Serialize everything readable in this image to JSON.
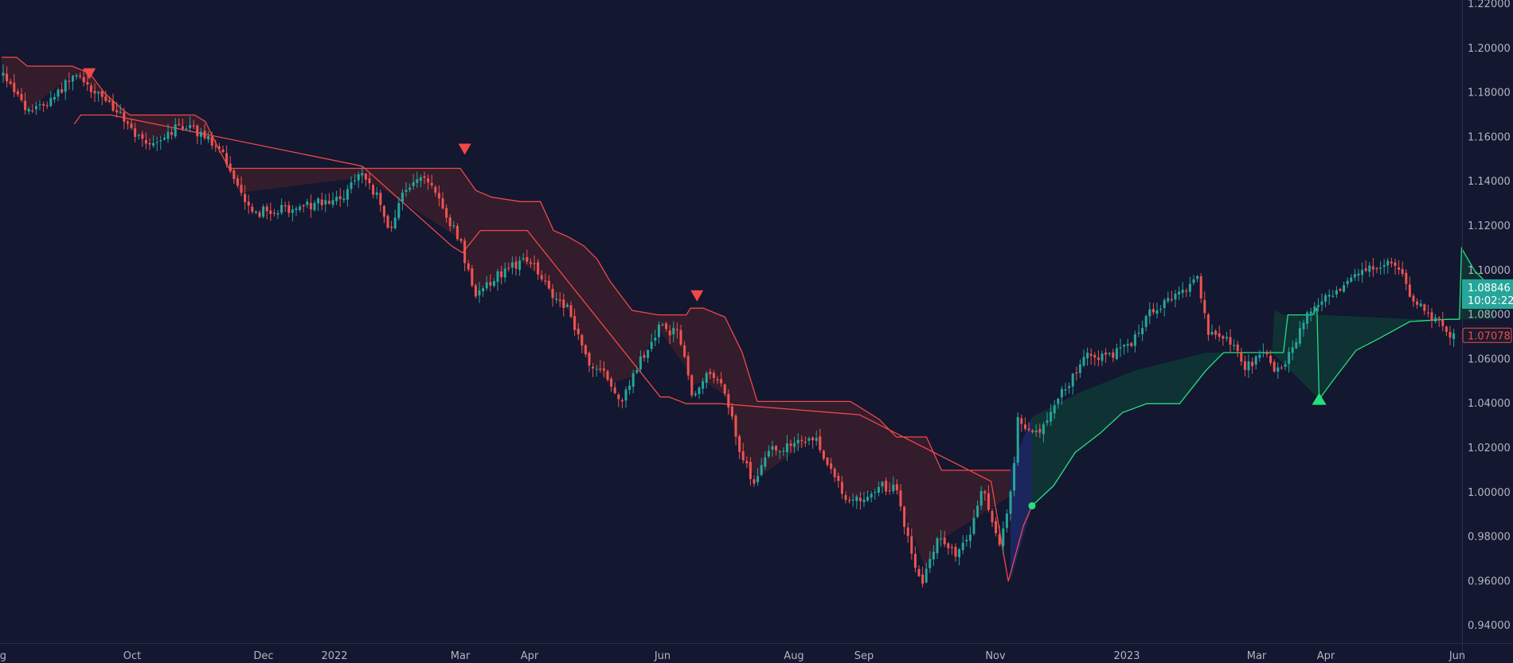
{
  "chart_data": {
    "type": "candlestick",
    "yaxis": {
      "range": [
        0.935,
        1.22
      ],
      "ticks": [
        "1.22000",
        "1.20000",
        "1.18000",
        "1.16000",
        "1.14000",
        "1.12000",
        "1.10000",
        "1.08000",
        "1.06000",
        "1.04000",
        "1.02000",
        "1.00000",
        "0.98000",
        "0.96000",
        "0.94000"
      ],
      "tick_values": [
        1.22,
        1.2,
        1.18,
        1.16,
        1.14,
        1.12,
        1.1,
        1.08,
        1.06,
        1.04,
        1.02,
        1.0,
        0.98,
        0.96,
        0.94
      ]
    },
    "xaxis": {
      "ticks": [
        {
          "label": "ug",
          "date": "2021-08-01"
        },
        {
          "label": "Oct",
          "date": "2021-10-01"
        },
        {
          "label": "Dec",
          "date": "2021-12-01"
        },
        {
          "label": "2022",
          "date": "2022-01-01"
        },
        {
          "label": "Mar",
          "date": "2022-03-01"
        },
        {
          "label": "Apr",
          "date": "2022-04-01"
        },
        {
          "label": "Jun",
          "date": "2022-06-01"
        },
        {
          "label": "Aug",
          "date": "2022-08-01"
        },
        {
          "label": "Sep",
          "date": "2022-09-01"
        },
        {
          "label": "Nov",
          "date": "2022-11-01"
        },
        {
          "label": "2023",
          "date": "2023-01-01"
        },
        {
          "label": "Mar",
          "date": "2023-03-01"
        },
        {
          "label": "Apr",
          "date": "2023-04-01"
        },
        {
          "label": "Jun",
          "date": "2023-06-01"
        }
      ]
    },
    "price_path": [
      [
        "2021-08-01",
        1.188
      ],
      [
        "2021-08-13",
        1.172
      ],
      [
        "2021-08-24",
        1.176
      ],
      [
        "2021-09-03",
        1.188
      ],
      [
        "2021-09-10",
        1.184
      ],
      [
        "2021-09-17",
        1.178
      ],
      [
        "2021-09-24",
        1.172
      ],
      [
        "2021-10-01",
        1.162
      ],
      [
        "2021-10-08",
        1.157
      ],
      [
        "2021-10-17",
        1.162
      ],
      [
        "2021-10-26",
        1.166
      ],
      [
        "2021-11-03",
        1.16
      ],
      [
        "2021-11-10",
        1.157
      ],
      [
        "2021-11-15",
        1.145
      ],
      [
        "2021-11-20",
        1.135
      ],
      [
        "2021-11-26",
        1.124
      ],
      [
        "2021-12-01",
        1.127
      ],
      [
        "2021-12-09",
        1.128
      ],
      [
        "2021-12-17",
        1.128
      ],
      [
        "2021-12-27",
        1.131
      ],
      [
        "2022-01-06",
        1.133
      ],
      [
        "2022-01-13",
        1.145
      ],
      [
        "2022-01-21",
        1.133
      ],
      [
        "2022-01-27",
        1.117
      ],
      [
        "2022-02-02",
        1.134
      ],
      [
        "2022-02-10",
        1.143
      ],
      [
        "2022-02-17",
        1.136
      ],
      [
        "2022-02-24",
        1.122
      ],
      [
        "2022-03-01",
        1.113
      ],
      [
        "2022-03-07",
        1.089
      ],
      [
        "2022-03-14",
        1.095
      ],
      [
        "2022-03-21",
        1.1
      ],
      [
        "2022-03-28",
        1.104
      ],
      [
        "2022-04-04",
        1.101
      ],
      [
        "2022-04-11",
        1.088
      ],
      [
        "2022-04-19",
        1.082
      ],
      [
        "2022-04-28",
        1.057
      ],
      [
        "2022-05-06",
        1.054
      ],
      [
        "2022-05-12",
        1.04
      ],
      [
        "2022-05-20",
        1.056
      ],
      [
        "2022-05-30",
        1.074
      ],
      [
        "2022-06-08",
        1.072
      ],
      [
        "2022-06-15",
        1.044
      ],
      [
        "2022-06-24",
        1.055
      ],
      [
        "2022-07-01",
        1.042
      ],
      [
        "2022-07-07",
        1.017
      ],
      [
        "2022-07-14",
        1.004
      ],
      [
        "2022-07-21",
        1.02
      ],
      [
        "2022-07-30",
        1.021
      ],
      [
        "2022-08-10",
        1.025
      ],
      [
        "2022-08-18",
        1.01
      ],
      [
        "2022-08-24",
        0.996
      ],
      [
        "2022-09-01",
        0.997
      ],
      [
        "2022-09-09",
        1.003
      ],
      [
        "2022-09-16",
        1.001
      ],
      [
        "2022-09-23",
        0.972
      ],
      [
        "2022-09-28",
        0.959
      ],
      [
        "2022-10-06",
        0.98
      ],
      [
        "2022-10-13",
        0.972
      ],
      [
        "2022-10-20",
        0.98
      ],
      [
        "2022-10-26",
        1.004
      ],
      [
        "2022-11-03",
        0.976
      ],
      [
        "2022-11-09",
        1.003
      ],
      [
        "2022-11-11",
        1.034
      ],
      [
        "2022-11-21",
        1.025
      ],
      [
        "2022-11-28",
        1.04
      ],
      [
        "2022-12-06",
        1.05
      ],
      [
        "2022-12-14",
        1.063
      ],
      [
        "2022-12-22",
        1.061
      ],
      [
        "2023-01-02",
        1.066
      ],
      [
        "2023-01-13",
        1.083
      ],
      [
        "2023-01-26",
        1.089
      ],
      [
        "2023-02-02",
        1.098
      ],
      [
        "2023-02-07",
        1.073
      ],
      [
        "2023-02-17",
        1.068
      ],
      [
        "2023-02-24",
        1.056
      ],
      [
        "2023-03-06",
        1.063
      ],
      [
        "2023-03-08",
        1.055
      ],
      [
        "2023-03-15",
        1.06
      ],
      [
        "2023-03-23",
        1.08
      ],
      [
        "2023-03-30",
        1.088
      ],
      [
        "2023-04-07",
        1.092
      ],
      [
        "2023-04-14",
        1.1
      ],
      [
        "2023-04-24",
        1.102
      ],
      [
        "2023-05-03",
        1.104
      ],
      [
        "2023-05-12",
        1.086
      ],
      [
        "2023-05-22",
        1.078
      ],
      [
        "2023-05-31",
        1.069
      ],
      [
        "2023-06-06",
        1.071
      ]
    ],
    "indicator": {
      "bear_upper": [
        [
          "2021-08-01",
          1.196
        ],
        [
          "2021-08-08",
          1.196
        ],
        [
          "2021-08-13",
          1.192
        ],
        [
          "2021-09-03",
          1.192
        ],
        [
          "2021-09-08",
          1.19
        ],
        [
          "2021-09-11",
          1.189
        ],
        [
          "2021-09-18",
          1.18
        ],
        [
          "2021-09-27",
          1.172
        ],
        [
          "2021-09-30",
          1.17
        ],
        [
          "2021-10-10",
          1.17
        ],
        [
          "2021-10-26",
          1.17
        ],
        [
          "2021-10-30",
          1.17
        ],
        [
          "2021-11-04",
          1.167
        ],
        [
          "2021-11-10",
          1.155
        ],
        [
          "2021-11-15",
          1.146
        ],
        [
          "2021-11-20",
          1.146
        ],
        [
          "2022-01-15",
          1.146
        ],
        [
          "2022-02-28",
          1.146
        ],
        [
          "2022-03-01",
          1.146
        ],
        [
          "2022-03-08",
          1.136
        ],
        [
          "2022-03-15",
          1.133
        ],
        [
          "2022-03-28",
          1.131
        ],
        [
          "2022-04-06",
          1.131
        ],
        [
          "2022-04-12",
          1.118
        ],
        [
          "2022-04-19",
          1.115
        ],
        [
          "2022-04-26",
          1.111
        ],
        [
          "2022-05-02",
          1.105
        ],
        [
          "2022-05-08",
          1.095
        ],
        [
          "2022-05-18",
          1.082
        ],
        [
          "2022-05-30",
          1.08
        ],
        [
          "2022-06-12",
          1.08
        ],
        [
          "2022-06-14",
          1.083
        ],
        [
          "2022-06-20",
          1.083
        ],
        [
          "2022-06-30",
          1.079
        ],
        [
          "2022-07-08",
          1.063
        ],
        [
          "2022-07-15",
          1.041
        ],
        [
          "2022-08-10",
          1.041
        ],
        [
          "2022-08-26",
          1.041
        ],
        [
          "2022-09-08",
          1.033
        ],
        [
          "2022-09-16",
          1.025
        ],
        [
          "2022-09-30",
          1.025
        ],
        [
          "2022-10-07",
          1.01
        ],
        [
          "2022-11-08",
          1.01
        ]
      ],
      "bear_lower": [
        [
          "2021-09-04",
          1.166
        ],
        [
          "2021-09-07",
          1.17
        ],
        [
          "2021-09-21",
          1.17
        ],
        [
          "2022-01-14",
          1.147
        ],
        [
          "2022-02-25",
          1.111
        ],
        [
          "2022-03-02",
          1.108
        ],
        [
          "2022-03-10",
          1.118
        ],
        [
          "2022-03-31",
          1.118
        ],
        [
          "2022-05-31",
          1.043
        ],
        [
          "2022-06-04",
          1.043
        ],
        [
          "2022-06-12",
          1.04
        ],
        [
          "2022-06-28",
          1.04
        ],
        [
          "2022-08-30",
          1.035
        ],
        [
          "2022-10-30",
          1.005
        ],
        [
          "2022-11-07",
          0.96
        ],
        [
          "2022-11-14",
          0.985
        ],
        [
          "2022-11-18",
          0.994
        ]
      ],
      "bull_line": [
        [
          "2022-11-18",
          0.994
        ],
        [
          "2022-11-28",
          1.003
        ],
        [
          "2022-12-08",
          1.018
        ],
        [
          "2022-12-20",
          1.027
        ],
        [
          "2022-12-30",
          1.036
        ],
        [
          "2023-01-10",
          1.04
        ],
        [
          "2023-01-25",
          1.04
        ],
        [
          "2023-02-06",
          1.055
        ],
        [
          "2023-02-14",
          1.063
        ],
        [
          "2023-03-06",
          1.063
        ],
        [
          "2023-03-13",
          1.063
        ],
        [
          "2023-03-15",
          1.08
        ],
        [
          "2023-03-26",
          1.08
        ],
        [
          "2023-03-28",
          1.083
        ],
        [
          "2023-03-29",
          1.042
        ],
        [
          "2023-04-04",
          1.05
        ],
        [
          "2023-04-15",
          1.064
        ],
        [
          "2023-04-25",
          1.069
        ],
        [
          "2023-05-10",
          1.077
        ],
        [
          "2023-05-27",
          1.078
        ],
        [
          "2023-06-02",
          1.078
        ],
        [
          "2023-06-03",
          1.11
        ],
        [
          "2023-06-09",
          1.1
        ],
        [
          "2023-06-15",
          1.094
        ],
        [
          "2023-06-18",
          1.094
        ]
      ],
      "bull_lower": [
        [
          "2022-11-18",
          0.994
        ],
        [
          "2022-11-28",
          1.003
        ],
        [
          "2022-12-08",
          1.018
        ],
        [
          "2022-12-20",
          1.027
        ],
        [
          "2022-12-30",
          1.036
        ],
        [
          "2023-01-10",
          1.04
        ],
        [
          "2023-01-25",
          1.04
        ],
        [
          "2023-02-06",
          1.055
        ],
        [
          "2023-02-14",
          1.063
        ],
        [
          "2023-03-08",
          1.063
        ],
        [
          "2023-03-29",
          1.042
        ],
        [
          "2023-04-04",
          1.05
        ],
        [
          "2023-04-15",
          1.064
        ],
        [
          "2023-04-25",
          1.069
        ],
        [
          "2023-05-10",
          1.077
        ],
        [
          "2023-06-02",
          1.078
        ],
        [
          "2023-06-18",
          1.078
        ]
      ],
      "bull_upper": [
        [
          "2022-11-18",
          0.994
        ],
        [
          "2022-11-18",
          1.034
        ],
        [
          "2022-12-10",
          1.045
        ],
        [
          "2023-01-05",
          1.055
        ],
        [
          "2023-02-06",
          1.063
        ],
        [
          "2023-03-06",
          1.063
        ],
        [
          "2023-03-08",
          1.063
        ],
        [
          "2023-03-09",
          1.082
        ],
        [
          "2023-03-13",
          1.08
        ],
        [
          "2023-03-28",
          1.08
        ],
        [
          "2023-03-29",
          1.08
        ],
        [
          "2023-05-15",
          1.078
        ],
        [
          "2023-06-02",
          1.078
        ],
        [
          "2023-06-03",
          1.11
        ],
        [
          "2023-06-09",
          1.1
        ],
        [
          "2023-06-15",
          1.094
        ],
        [
          "2023-06-18",
          1.094
        ]
      ],
      "signals": [
        {
          "type": "sell",
          "date": "2021-09-11",
          "price": 1.19
        },
        {
          "type": "sell",
          "date": "2022-03-03",
          "price": 1.156
        },
        {
          "type": "sell",
          "date": "2022-06-17",
          "price": 1.09
        },
        {
          "type": "buy",
          "date": "2023-03-29",
          "price": 1.042
        }
      ],
      "flip_dot": {
        "date": "2022-11-18",
        "price": 0.994
      }
    },
    "price_labels": [
      {
        "value": 1.08846,
        "line1": "1.08846",
        "line2": "10:02:22"
      },
      {
        "value": 1.07078,
        "line1": "1.07078"
      }
    ],
    "colors": {
      "background": "#131730",
      "bull_candle": "#26a69a",
      "bear_candle": "#ef5350",
      "bear_band_line": "#f04848",
      "bear_band_fill": "#3a1d2c",
      "bull_band_line": "#25e07e",
      "bull_band_fill": "#0f3535",
      "axis_text": "#b2b5be",
      "current_price_bg": "#26a69a",
      "stop_price_color": "#ef4c4c"
    },
    "grid": false,
    "legend": "none"
  }
}
